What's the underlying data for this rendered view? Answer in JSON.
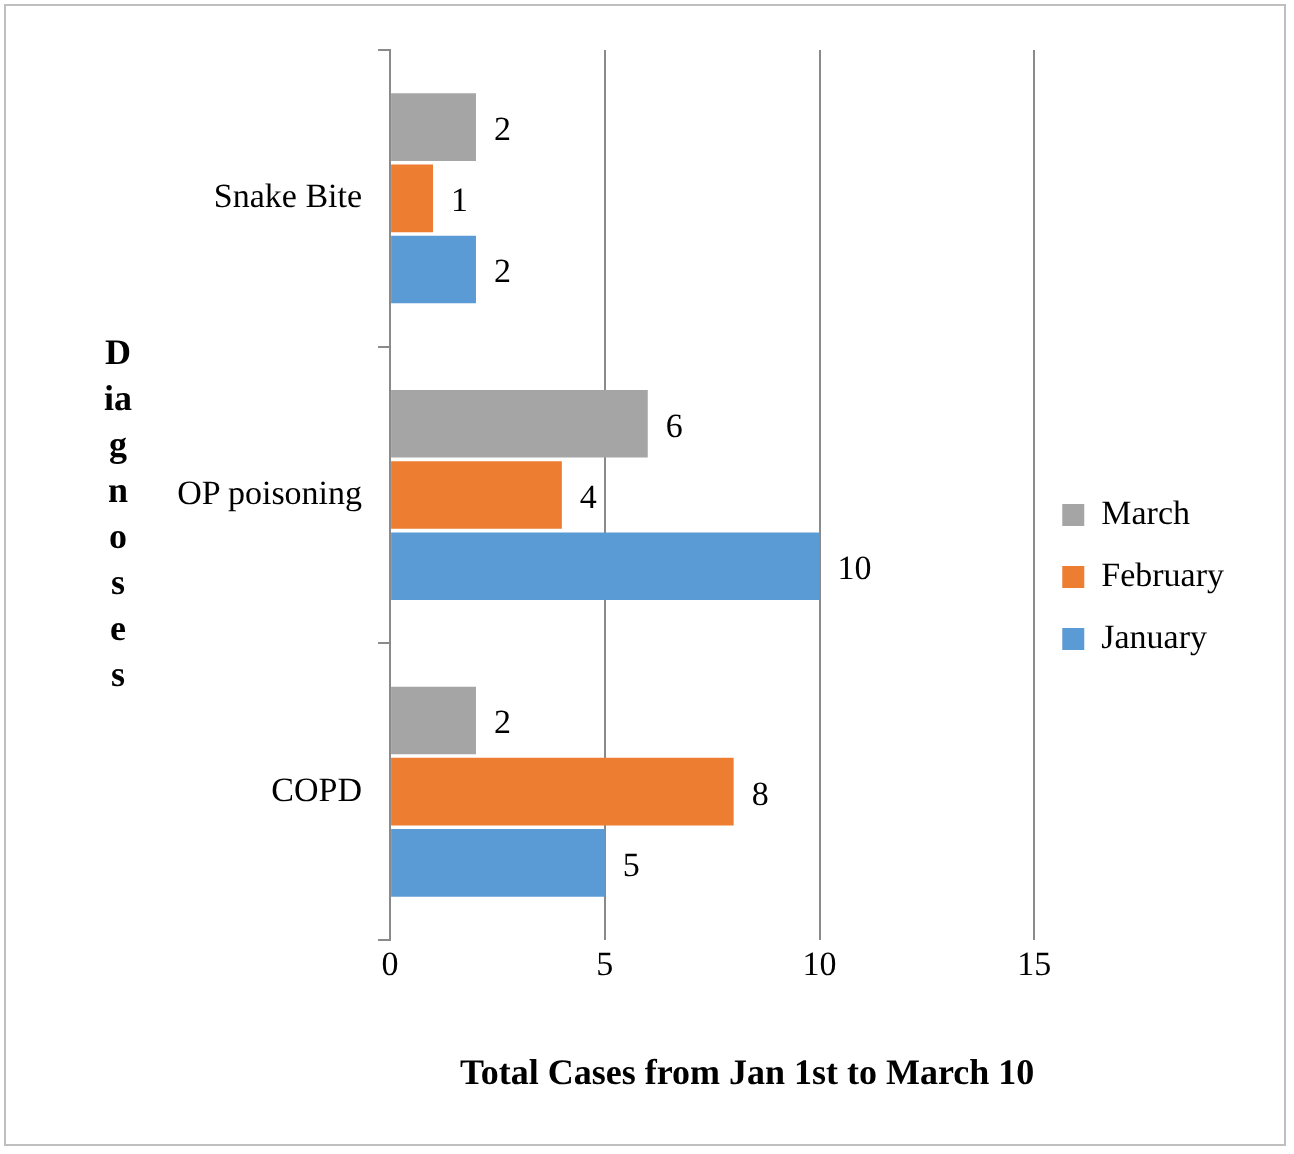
{
  "chart_data": {
    "type": "bar",
    "orientation": "horizontal",
    "categories": [
      "Snake Bite",
      "OP poisoning",
      "COPD"
    ],
    "series": [
      {
        "name": "March",
        "color": "#a5a5a5",
        "values": [
          2,
          6,
          2
        ]
      },
      {
        "name": "February",
        "color": "#ed7d31",
        "values": [
          1,
          4,
          8
        ]
      },
      {
        "name": "January",
        "color": "#5b9bd5",
        "values": [
          2,
          10,
          5
        ]
      }
    ],
    "xlabel": "Total Cases from Jan 1st to March 10",
    "ylabel": "Diagnoses",
    "xlim": [
      0,
      15
    ],
    "xticks": [
      0,
      5,
      10,
      15
    ],
    "grid": "x",
    "legend": "right",
    "data_labels": true
  }
}
